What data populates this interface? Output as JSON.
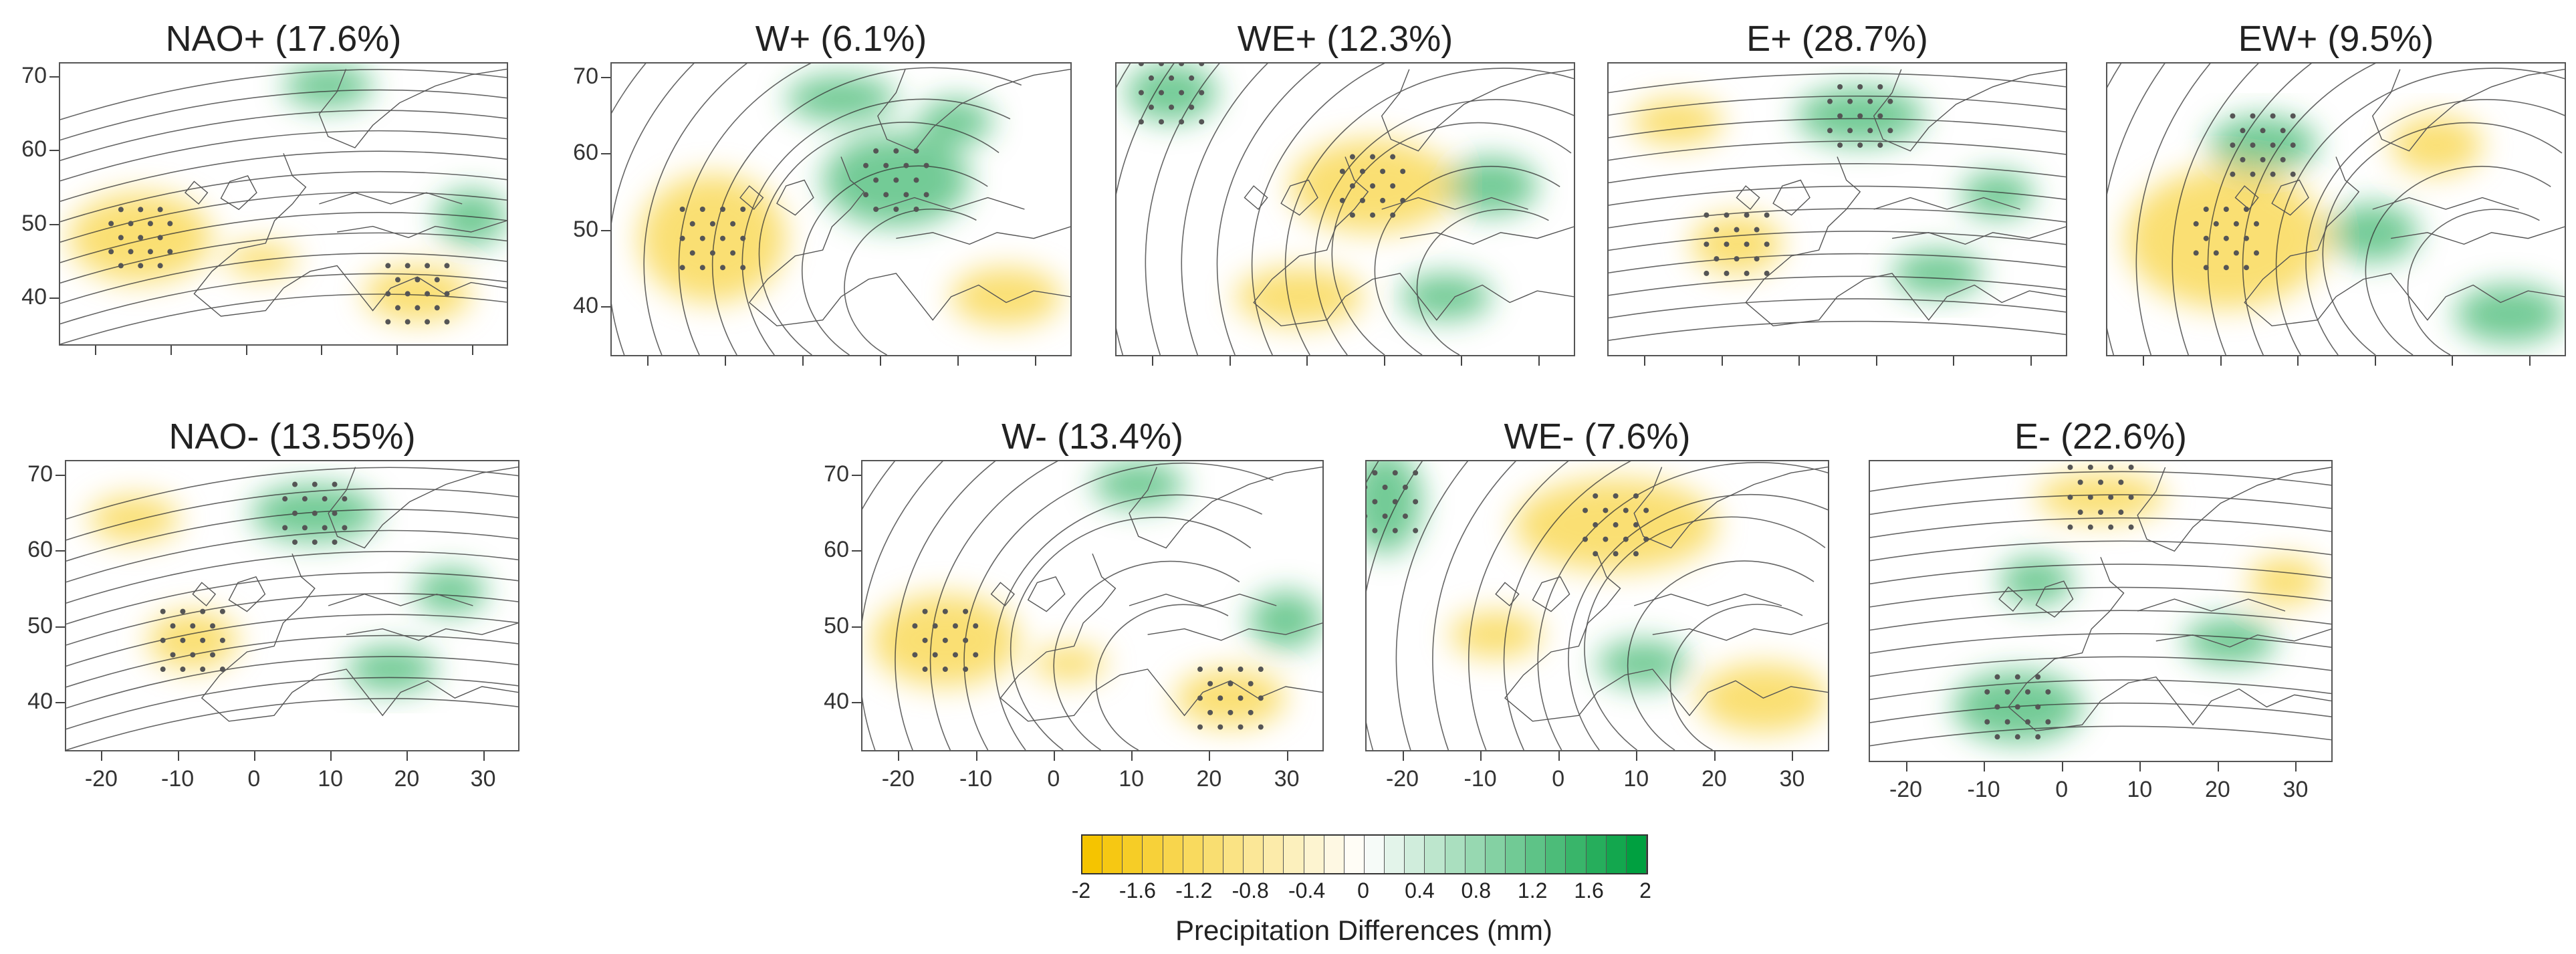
{
  "chart_data": {
    "type": "heatmap",
    "description_kind": "map-panels",
    "panels": [
      {
        "id": "nao-plus",
        "title": "NAO+ (17.6%)",
        "pattern": "dry_west",
        "contour_style": "nao_plus"
      },
      {
        "id": "w-plus",
        "title": "W+ (6.1%)",
        "pattern": "wet_east",
        "contour_style": "w_plus"
      },
      {
        "id": "we-plus",
        "title": "WE+ (12.3%)",
        "pattern": "dry_center",
        "contour_style": "we_plus"
      },
      {
        "id": "e-plus",
        "title": "E+ (28.7%)",
        "pattern": "mixed_light",
        "contour_style": "e_plus"
      },
      {
        "id": "ew-plus",
        "title": "EW+ (9.5%)",
        "pattern": "dry_southwest",
        "contour_style": "ew_plus"
      },
      {
        "id": "nao-minus",
        "title": "NAO- (13.55%)",
        "pattern": "mixed_light",
        "contour_style": "nao_minus"
      },
      {
        "id": "w-minus",
        "title": "W- (13.4%)",
        "pattern": "dry_west",
        "contour_style": "w_minus"
      },
      {
        "id": "we-minus",
        "title": "WE- (7.6%)",
        "pattern": "dry_north",
        "contour_style": "we_minus"
      },
      {
        "id": "e-minus",
        "title": "E- (22.6%)",
        "pattern": "wet_iberia",
        "contour_style": "e_minus"
      }
    ],
    "y_ticks": [
      "70",
      "60",
      "50",
      "40"
    ],
    "x_ticks": [
      "-20",
      "-10",
      "0",
      "10",
      "20",
      "30"
    ],
    "colorbar": {
      "title": "Precipitation Differences (mm)",
      "range": [
        -2,
        2
      ],
      "labels": [
        "-2",
        "-1.6",
        "-1.2",
        "-0.8",
        "-0.4",
        "0",
        "0.4",
        "0.8",
        "1.2",
        "1.6",
        "2"
      ],
      "dry_color": "#f5c400",
      "mid_color": "#ffffff",
      "wet_color": "#00a040"
    }
  }
}
